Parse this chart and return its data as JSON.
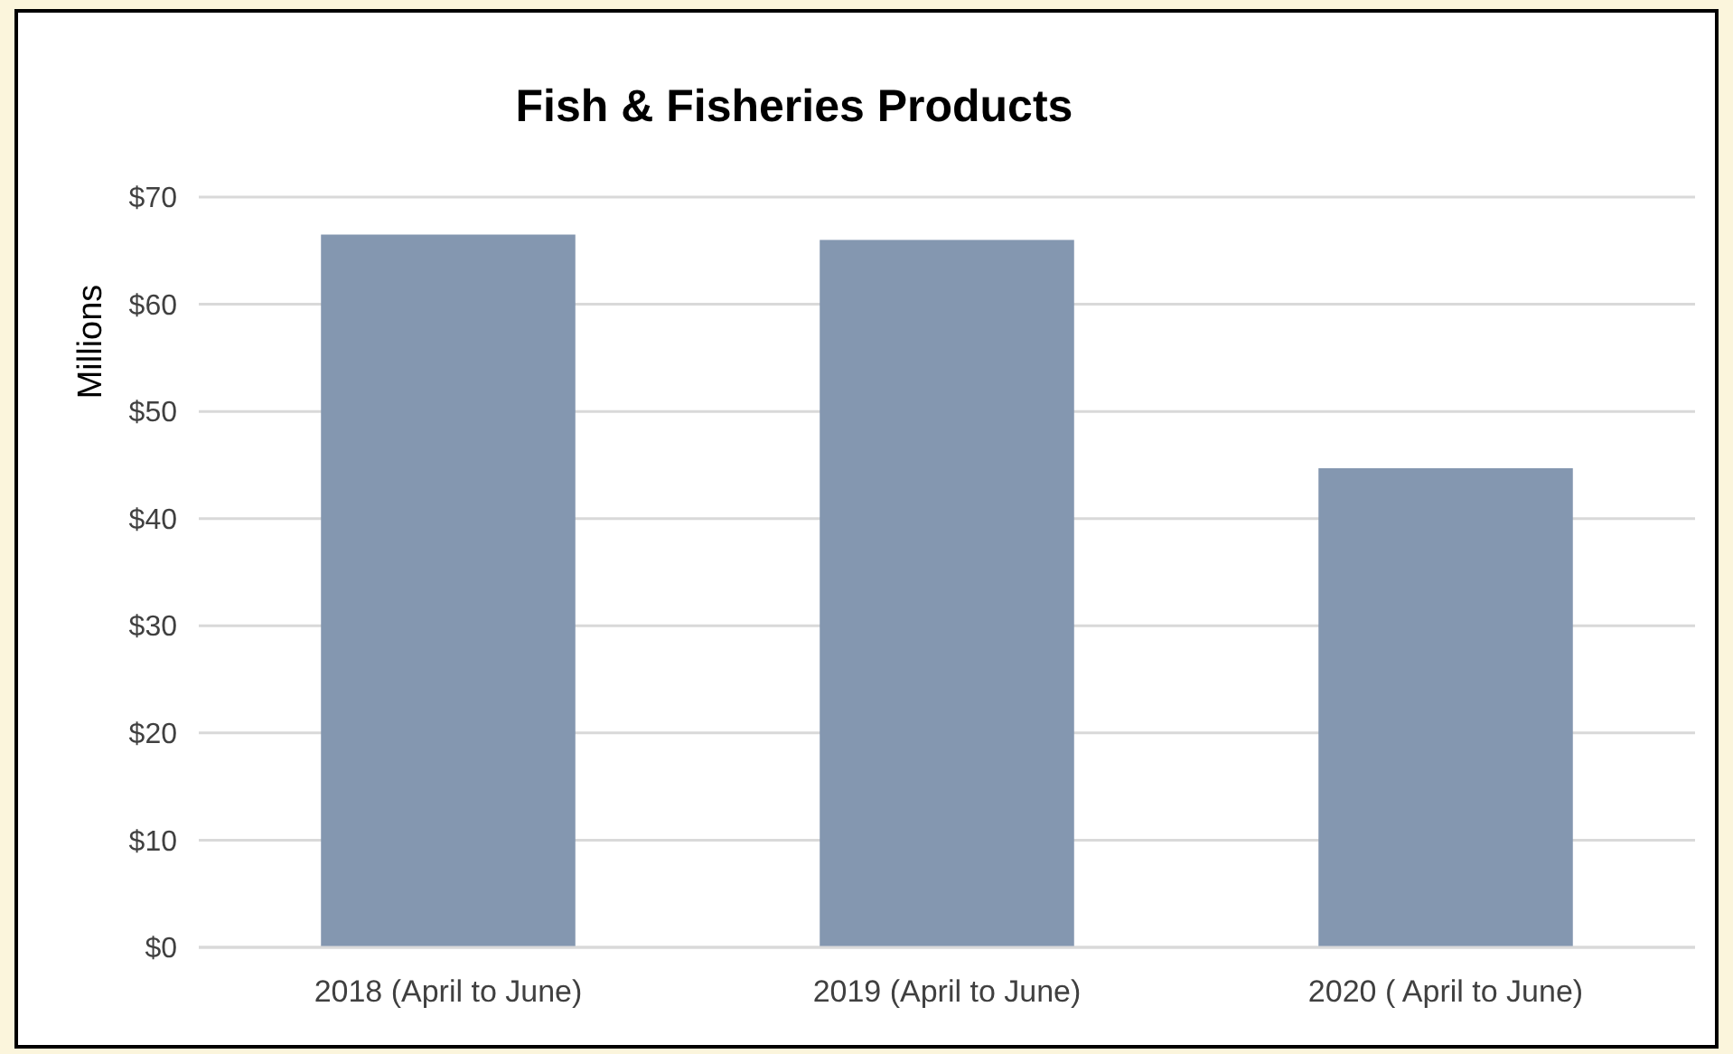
{
  "chart_data": {
    "type": "bar",
    "title": "Fish & Fisheries Products",
    "ylabel": "Millions",
    "categories": [
      "2018 (April to June)",
      "2019 (April to June)",
      "2020 ( April to June)"
    ],
    "values": [
      66.5,
      66,
      44.7
    ],
    "color": "#8497b0",
    "ylim": [
      0,
      70
    ],
    "yticks": [
      {
        "value": 0,
        "label": "$0"
      },
      {
        "value": 10,
        "label": "$10"
      },
      {
        "value": 20,
        "label": "$20"
      },
      {
        "value": 30,
        "label": "$30"
      },
      {
        "value": 40,
        "label": "$40"
      },
      {
        "value": 50,
        "label": "$50"
      },
      {
        "value": 60,
        "label": "$60"
      },
      {
        "value": 70,
        "label": "$70"
      }
    ],
    "grid": "y"
  }
}
